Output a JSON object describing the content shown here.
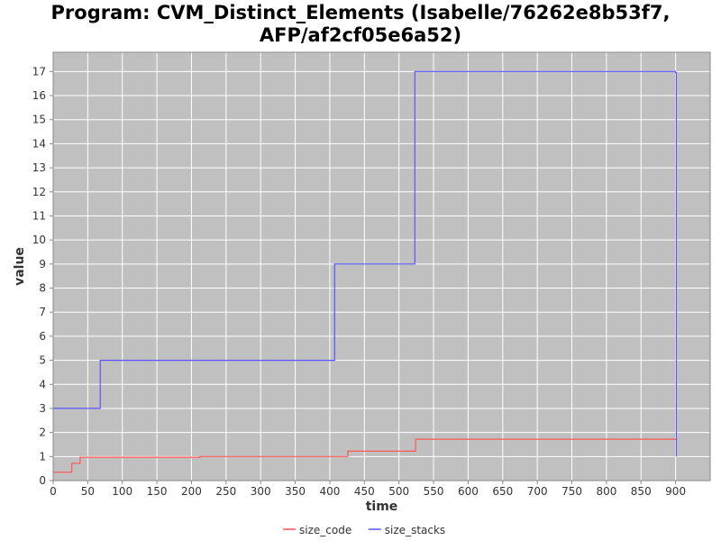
{
  "chart_data": {
    "type": "line",
    "title_lines": [
      "Program: CVM_Distinct_Elements (Isabelle/76262e8b53f7,",
      "AFP/af2cf05e6a52)"
    ],
    "xlabel": "time",
    "ylabel": "value",
    "xlim": [
      0,
      950
    ],
    "ylim": [
      0,
      17.8
    ],
    "x_ticks": [
      0,
      50,
      100,
      150,
      200,
      250,
      300,
      350,
      400,
      450,
      500,
      550,
      600,
      650,
      700,
      750,
      800,
      850,
      900
    ],
    "y_ticks": [
      0,
      1,
      2,
      3,
      4,
      5,
      6,
      7,
      8,
      9,
      10,
      11,
      12,
      13,
      14,
      15,
      16,
      17
    ],
    "grid": true,
    "legend_position": "bottom",
    "plot_background": "#c0c0c0",
    "grid_color": "#ffffff",
    "series": [
      {
        "name": "size_code",
        "color": "#ff5555",
        "points": [
          [
            0,
            0.35
          ],
          [
            25,
            0.35
          ],
          [
            27,
            0.72
          ],
          [
            37,
            0.72
          ],
          [
            39,
            0.97
          ],
          [
            210,
            0.97
          ],
          [
            212,
            1.0
          ],
          [
            424,
            1.0
          ],
          [
            426,
            1.22
          ],
          [
            522,
            1.22
          ],
          [
            524,
            1.72
          ],
          [
            901,
            1.72
          ],
          [
            902,
            1.72
          ]
        ]
      },
      {
        "name": "size_stacks",
        "color": "#5555ff",
        "points": [
          [
            0,
            3
          ],
          [
            67,
            3
          ],
          [
            68,
            5
          ],
          [
            406,
            5
          ],
          [
            407,
            9
          ],
          [
            522,
            9
          ],
          [
            523,
            17
          ],
          [
            896,
            17
          ],
          [
            900,
            16.95
          ],
          [
            901,
            1.0
          ]
        ]
      }
    ]
  }
}
